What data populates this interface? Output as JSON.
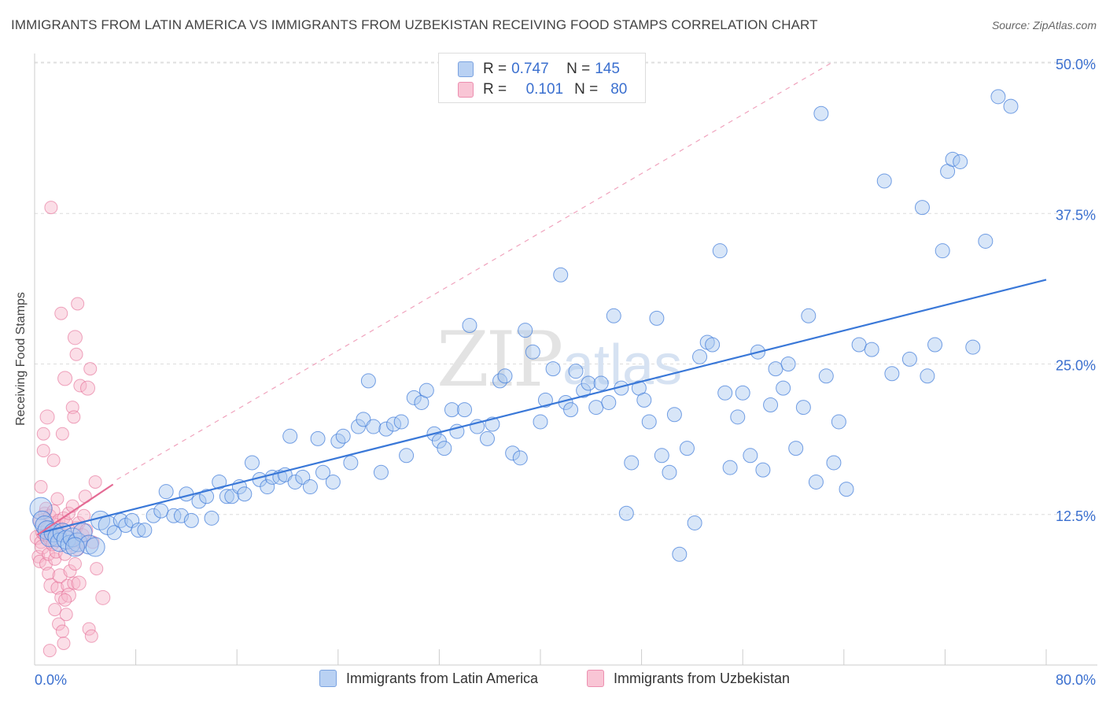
{
  "title": "IMMIGRANTS FROM LATIN AMERICA VS IMMIGRANTS FROM UZBEKISTAN RECEIVING FOOD STAMPS CORRELATION CHART",
  "source": "Source: ZipAtlas.com",
  "colors": {
    "blue": "#3a78d8",
    "blue_fill": "#a9c8f0",
    "pink": "#e46b94",
    "pink_fill": "#f7b6c9",
    "axis_value": "#3a6fcf"
  },
  "legend_top": {
    "rows": [
      {
        "r_label": "R =",
        "r_value": "0.747",
        "n_label": "N =",
        "n_value": "145"
      },
      {
        "r_label": "R =",
        "r_value": "0.101",
        "n_label": "N =",
        "n_value": "80"
      }
    ]
  },
  "chart_data": {
    "type": "scatter",
    "title": "IMMIGRANTS FROM LATIN AMERICA VS IMMIGRANTS FROM UZBEKISTAN RECEIVING FOOD STAMPS CORRELATION CHART",
    "xlabel": "",
    "ylabel": "Receiving Food Stamps",
    "xlim": [
      0,
      80
    ],
    "ylim": [
      0,
      50
    ],
    "x_tick_labels": [
      "0.0%",
      "80.0%"
    ],
    "y_tick_values": [
      12.5,
      25.0,
      37.5,
      50.0
    ],
    "y_tick_labels": [
      "12.5%",
      "25.0%",
      "37.5%",
      "50.0%"
    ],
    "grid": "horizontal dashed",
    "watermark": "ZIPatlas",
    "series": [
      {
        "name": "Immigrants from Latin America",
        "R": 0.747,
        "N": 145,
        "trend": {
          "x": [
            0.5,
            80
          ],
          "y": [
            11.0,
            32.0
          ]
        },
        "points": [
          [
            0.5,
            13.0
          ],
          [
            0.6,
            12.0
          ],
          [
            0.8,
            11.6
          ],
          [
            1.0,
            11.2
          ],
          [
            1.2,
            10.6
          ],
          [
            1.5,
            11.0
          ],
          [
            1.8,
            10.6
          ],
          [
            2.0,
            10.2
          ],
          [
            2.2,
            11.0
          ],
          [
            2.5,
            10.4
          ],
          [
            2.8,
            10.0
          ],
          [
            3.0,
            10.6
          ],
          [
            3.4,
            10.2
          ],
          [
            3.8,
            11.0
          ],
          [
            4.3,
            10.0
          ],
          [
            4.8,
            9.8
          ],
          [
            5.2,
            12.0
          ],
          [
            5.8,
            11.6
          ],
          [
            6.3,
            11.0
          ],
          [
            6.8,
            12.0
          ],
          [
            7.2,
            11.6
          ],
          [
            7.7,
            12.0
          ],
          [
            8.2,
            11.2
          ],
          [
            8.7,
            11.2
          ],
          [
            9.4,
            12.4
          ],
          [
            10.0,
            12.8
          ],
          [
            10.4,
            14.4
          ],
          [
            11.0,
            12.4
          ],
          [
            11.6,
            12.4
          ],
          [
            12.0,
            14.2
          ],
          [
            12.4,
            12.0
          ],
          [
            13.0,
            13.6
          ],
          [
            13.6,
            14.0
          ],
          [
            14.0,
            12.2
          ],
          [
            14.6,
            15.2
          ],
          [
            15.2,
            14.0
          ],
          [
            15.6,
            14.0
          ],
          [
            16.2,
            14.8
          ],
          [
            16.6,
            14.2
          ],
          [
            17.2,
            16.8
          ],
          [
            17.8,
            15.4
          ],
          [
            18.4,
            14.8
          ],
          [
            18.8,
            15.6
          ],
          [
            19.4,
            15.6
          ],
          [
            19.8,
            15.8
          ],
          [
            20.2,
            19.0
          ],
          [
            20.6,
            15.2
          ],
          [
            21.2,
            15.6
          ],
          [
            21.8,
            14.8
          ],
          [
            22.4,
            18.8
          ],
          [
            22.8,
            16.0
          ],
          [
            23.6,
            15.2
          ],
          [
            24.0,
            18.6
          ],
          [
            24.4,
            19.0
          ],
          [
            25.0,
            16.8
          ],
          [
            25.6,
            19.8
          ],
          [
            26.0,
            20.4
          ],
          [
            26.4,
            23.6
          ],
          [
            26.8,
            19.8
          ],
          [
            27.4,
            16.0
          ],
          [
            27.8,
            19.6
          ],
          [
            28.4,
            20.0
          ],
          [
            29.0,
            20.2
          ],
          [
            29.4,
            17.4
          ],
          [
            30.0,
            22.2
          ],
          [
            30.6,
            21.8
          ],
          [
            31.0,
            22.8
          ],
          [
            31.6,
            19.2
          ],
          [
            32.0,
            18.6
          ],
          [
            32.4,
            18.0
          ],
          [
            33.0,
            21.2
          ],
          [
            33.4,
            19.4
          ],
          [
            34.0,
            21.2
          ],
          [
            34.4,
            28.2
          ],
          [
            35.0,
            19.8
          ],
          [
            35.8,
            18.8
          ],
          [
            36.2,
            20.0
          ],
          [
            36.8,
            23.6
          ],
          [
            37.2,
            24.0
          ],
          [
            37.8,
            17.6
          ],
          [
            38.4,
            17.2
          ],
          [
            38.8,
            27.8
          ],
          [
            39.4,
            26.0
          ],
          [
            40.0,
            20.2
          ],
          [
            40.4,
            22.0
          ],
          [
            41.0,
            24.6
          ],
          [
            41.6,
            32.4
          ],
          [
            42.0,
            21.8
          ],
          [
            42.4,
            21.2
          ],
          [
            42.8,
            24.4
          ],
          [
            43.4,
            22.8
          ],
          [
            43.8,
            23.4
          ],
          [
            44.4,
            21.4
          ],
          [
            44.8,
            23.4
          ],
          [
            45.4,
            21.8
          ],
          [
            45.8,
            29.0
          ],
          [
            46.4,
            23.0
          ],
          [
            46.8,
            12.6
          ],
          [
            47.2,
            16.8
          ],
          [
            47.8,
            23.0
          ],
          [
            48.2,
            22.0
          ],
          [
            48.6,
            20.2
          ],
          [
            49.2,
            28.8
          ],
          [
            49.6,
            17.4
          ],
          [
            50.2,
            16.0
          ],
          [
            50.6,
            20.8
          ],
          [
            51.0,
            9.2
          ],
          [
            51.6,
            18.0
          ],
          [
            52.2,
            11.8
          ],
          [
            52.6,
            25.6
          ],
          [
            53.2,
            26.8
          ],
          [
            53.6,
            26.6
          ],
          [
            54.2,
            34.4
          ],
          [
            54.6,
            22.6
          ],
          [
            55.0,
            16.4
          ],
          [
            55.6,
            20.6
          ],
          [
            56.0,
            22.6
          ],
          [
            56.6,
            17.4
          ],
          [
            57.2,
            26.0
          ],
          [
            57.6,
            16.2
          ],
          [
            58.2,
            21.6
          ],
          [
            58.6,
            24.6
          ],
          [
            59.2,
            23.0
          ],
          [
            59.6,
            25.0
          ],
          [
            60.2,
            18.0
          ],
          [
            60.8,
            21.4
          ],
          [
            61.2,
            29.0
          ],
          [
            61.8,
            15.2
          ],
          [
            62.2,
            45.8
          ],
          [
            62.6,
            24.0
          ],
          [
            63.2,
            16.8
          ],
          [
            63.6,
            20.2
          ],
          [
            64.2,
            14.6
          ],
          [
            65.2,
            26.6
          ],
          [
            66.2,
            26.2
          ],
          [
            67.2,
            40.2
          ],
          [
            67.8,
            24.2
          ],
          [
            69.2,
            25.4
          ],
          [
            70.2,
            38.0
          ],
          [
            70.6,
            24.0
          ],
          [
            71.2,
            26.6
          ],
          [
            71.8,
            34.4
          ],
          [
            72.2,
            41.0
          ],
          [
            72.6,
            42.0
          ],
          [
            73.2,
            41.8
          ],
          [
            74.2,
            26.4
          ],
          [
            75.2,
            35.2
          ],
          [
            76.2,
            47.2
          ],
          [
            77.2,
            46.4
          ],
          [
            3.2,
            9.8
          ]
        ]
      },
      {
        "name": "Immigrants from Uzbekistan",
        "R": 0.101,
        "N": 80,
        "trend": {
          "x": [
            0.2,
            6.2
          ],
          "y": [
            10.8,
            15.0
          ]
        },
        "points": [
          [
            0.2,
            10.6
          ],
          [
            0.3,
            9.0
          ],
          [
            0.4,
            12.0
          ],
          [
            0.4,
            8.6
          ],
          [
            0.5,
            10.2
          ],
          [
            0.5,
            14.8
          ],
          [
            0.6,
            11.0
          ],
          [
            0.6,
            9.8
          ],
          [
            0.7,
            19.2
          ],
          [
            0.7,
            17.8
          ],
          [
            0.8,
            12.6
          ],
          [
            0.8,
            10.8
          ],
          [
            0.9,
            13.0
          ],
          [
            0.9,
            8.4
          ],
          [
            1.0,
            20.6
          ],
          [
            1.0,
            11.4
          ],
          [
            1.1,
            7.6
          ],
          [
            1.1,
            9.2
          ],
          [
            1.2,
            10.4
          ],
          [
            1.2,
            12.4
          ],
          [
            1.3,
            38.0
          ],
          [
            1.3,
            6.6
          ],
          [
            1.4,
            11.0
          ],
          [
            1.4,
            10.0
          ],
          [
            1.5,
            17.0
          ],
          [
            1.5,
            12.8
          ],
          [
            1.6,
            8.8
          ],
          [
            1.6,
            4.6
          ],
          [
            1.7,
            11.6
          ],
          [
            1.7,
            9.4
          ],
          [
            1.8,
            13.8
          ],
          [
            1.8,
            6.4
          ],
          [
            1.9,
            12.0
          ],
          [
            1.9,
            3.4
          ],
          [
            2.0,
            10.8
          ],
          [
            2.0,
            7.4
          ],
          [
            2.1,
            29.2
          ],
          [
            2.1,
            5.6
          ],
          [
            2.2,
            19.2
          ],
          [
            2.2,
            2.8
          ],
          [
            2.3,
            12.2
          ],
          [
            2.3,
            1.8
          ],
          [
            2.4,
            23.8
          ],
          [
            2.4,
            9.2
          ],
          [
            2.5,
            11.8
          ],
          [
            2.5,
            4.2
          ],
          [
            2.6,
            10.6
          ],
          [
            2.6,
            6.6
          ],
          [
            2.7,
            12.6
          ],
          [
            2.7,
            5.8
          ],
          [
            2.8,
            7.8
          ],
          [
            2.9,
            10.2
          ],
          [
            3.0,
            21.4
          ],
          [
            3.0,
            13.2
          ],
          [
            3.1,
            20.6
          ],
          [
            3.1,
            6.8
          ],
          [
            3.2,
            27.2
          ],
          [
            3.2,
            8.4
          ],
          [
            3.3,
            25.8
          ],
          [
            3.3,
            11.4
          ],
          [
            3.4,
            30.0
          ],
          [
            3.4,
            9.6
          ],
          [
            3.5,
            11.8
          ],
          [
            3.5,
            6.8
          ],
          [
            3.6,
            23.2
          ],
          [
            3.7,
            10.2
          ],
          [
            3.8,
            10.8
          ],
          [
            3.9,
            12.4
          ],
          [
            4.0,
            14.0
          ],
          [
            4.1,
            11.2
          ],
          [
            4.2,
            23.0
          ],
          [
            4.3,
            3.0
          ],
          [
            4.4,
            24.6
          ],
          [
            4.5,
            2.4
          ],
          [
            4.6,
            10.2
          ],
          [
            4.8,
            15.2
          ],
          [
            4.9,
            8.0
          ],
          [
            5.4,
            5.6
          ],
          [
            2.4,
            5.4
          ],
          [
            1.2,
            1.2
          ]
        ]
      }
    ]
  },
  "legend_bottom": [
    {
      "label": "Immigrants from Latin America"
    },
    {
      "label": "Immigrants from Uzbekistan"
    }
  ]
}
